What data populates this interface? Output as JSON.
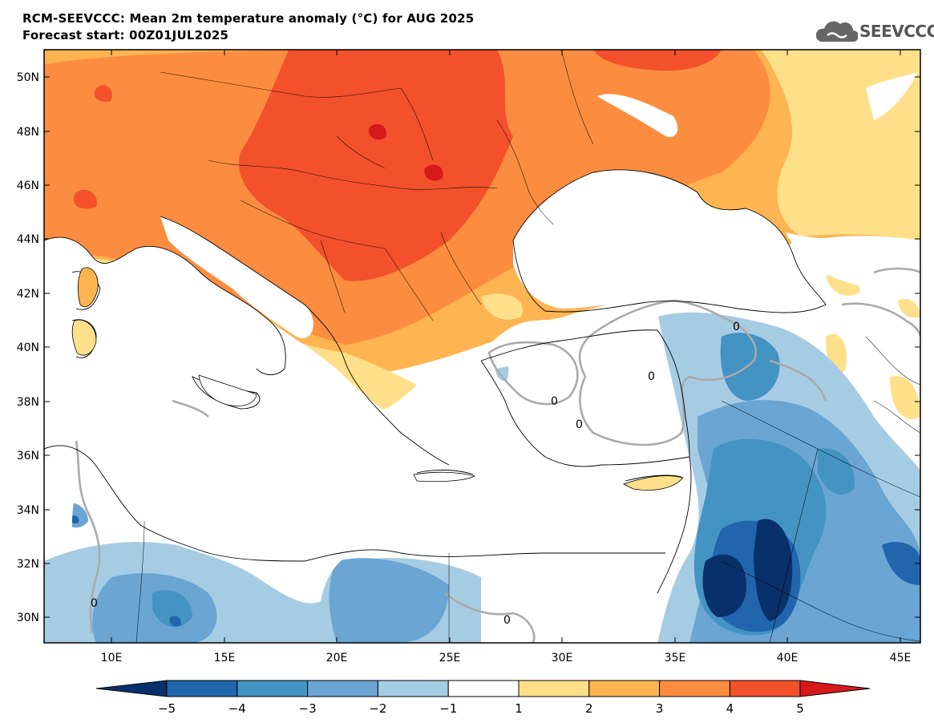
{
  "header": {
    "title": "RCM-SEEVCCC: Mean 2m temperature anomaly (°C) for AUG 2025",
    "subtitle": "Forecast start: 00Z01JUL2025",
    "logo_text": "SEEVCCC",
    "logo_icon": "cloud-icon"
  },
  "map": {
    "lat_ticks": [
      "50N",
      "48N",
      "46N",
      "44N",
      "42N",
      "40N",
      "38N",
      "36N",
      "34N",
      "32N",
      "30N"
    ],
    "lon_ticks": [
      "10E",
      "15E",
      "20E",
      "25E",
      "30E",
      "35E",
      "40E",
      "45E"
    ],
    "contour_label": "0"
  },
  "colorbar": {
    "ticks": [
      "−5",
      "−4",
      "−3",
      "−2",
      "−1",
      "1",
      "2",
      "3",
      "4",
      "5"
    ],
    "colors": [
      "#08306b",
      "#2166ac",
      "#4393c3",
      "#6aa5d4",
      "#a6cce4",
      "#ffffff",
      "#ffe08a",
      "#fdb451",
      "#fc8d40",
      "#f2512b",
      "#d7191c"
    ]
  }
}
